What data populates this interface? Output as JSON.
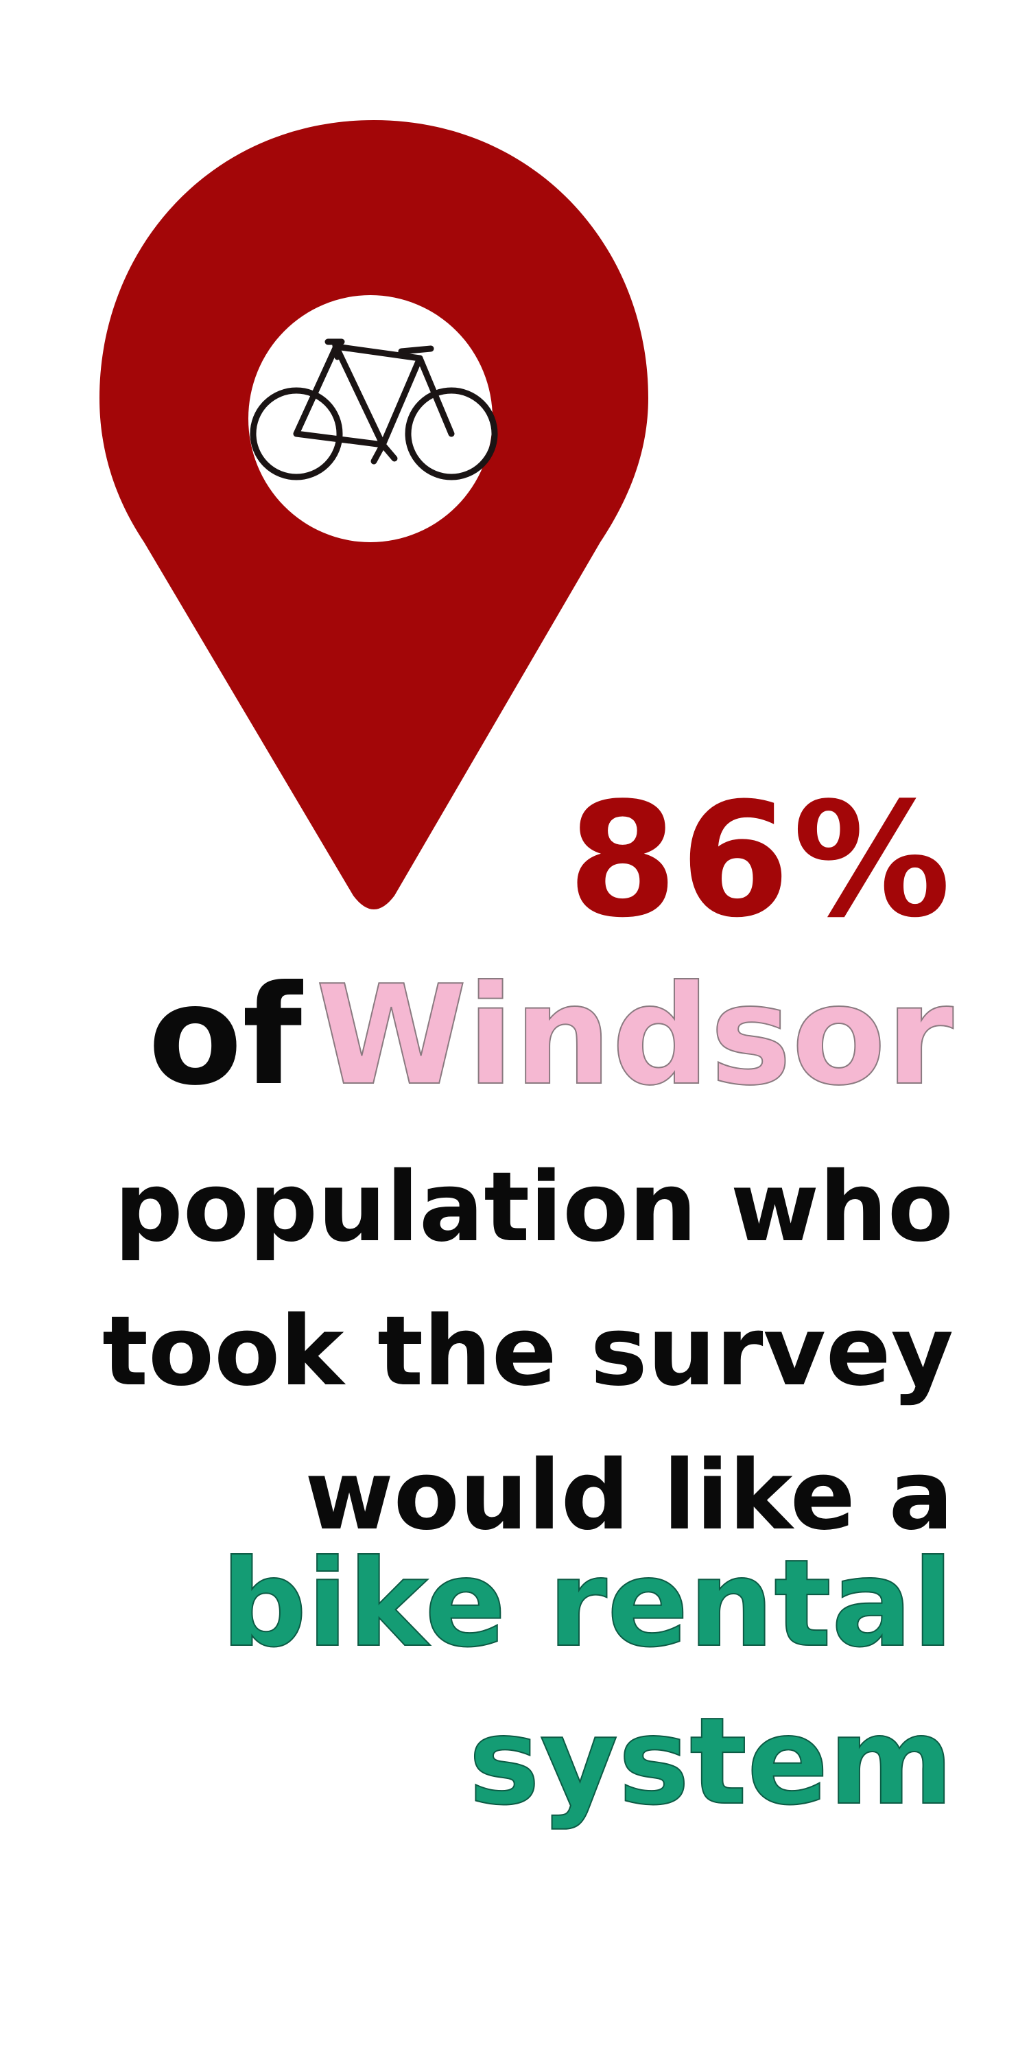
{
  "stat": {
    "percent": "86%"
  },
  "headline": {
    "prefix": "of",
    "city": "Windsor",
    "line_3": "population who",
    "line_4": "took the survey",
    "line_5": "would like a",
    "highlight_1": "bike rental",
    "highlight_2": "system"
  },
  "icons": {
    "pin": "map-pin-icon",
    "bike": "bicycle-icon"
  },
  "colors": {
    "pin": "#a30608",
    "stat": "#a30608",
    "city": "#f5b8d2",
    "highlight": "#149c74",
    "text": "#0a0a0a",
    "background": "#ffffff"
  }
}
